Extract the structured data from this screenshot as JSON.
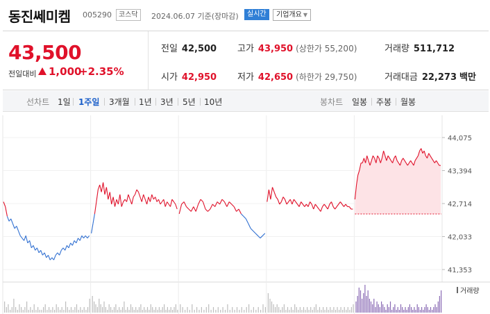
{
  "header": {
    "name": "동진쎄미켐",
    "code": "005290",
    "market": "코스닥",
    "date": "2024.06.07",
    "basis": "기준(장마감)",
    "live_label": "실시간",
    "info_label": "기업개요"
  },
  "quote": {
    "price": "43,500",
    "change_label": "전일대비",
    "change": "1,000",
    "change_pct": "+2.35%",
    "prev_label": "전일",
    "prev": "42,500",
    "open_label": "시가",
    "open": "42,950",
    "high_label": "고가",
    "high": "43,950",
    "upper_limit": "(상한가 55,200)",
    "low_label": "저가",
    "low": "42,650",
    "lower_limit": "(하한가 29,750)",
    "volume_label": "거래량",
    "volume": "511,712",
    "amount_label": "거래대금",
    "amount": "22,273",
    "amount_unit": "백만",
    "accent_up": "#e0112a",
    "accent_down": "#2f6fd1"
  },
  "periods": {
    "line_title": "선차트",
    "line_options": [
      "1일",
      "1주일",
      "3개월",
      "1년",
      "3년",
      "5년",
      "10년"
    ],
    "selected": "1주일",
    "candle_title": "봉차트",
    "candle_options": [
      "일봉",
      "주봉",
      "월봉"
    ]
  },
  "chart_data": {
    "type": "line",
    "title": "",
    "xlabel": "",
    "ylabel": "",
    "ylim": [
      41353,
      44075
    ],
    "y_ticks": [
      44075,
      43394,
      42714,
      42033,
      41353
    ],
    "y_tick_labels": [
      "44,075",
      "43,394",
      "42,714",
      "42,033",
      "41,353"
    ],
    "days": 5,
    "reference_price": 42500,
    "colors": {
      "up": "#e0112a",
      "down": "#2f6fd1",
      "fill": "#fde3e6"
    },
    "volume_legend": "거래량",
    "series": [
      {
        "day": 1,
        "values": [
          42750,
          42650,
          42450,
          42350,
          42400,
          42300,
          42200,
          42250,
          42150,
          42050,
          42000,
          41950,
          42050,
          41900,
          41950,
          41800,
          41850,
          41750,
          41800,
          41700,
          41750,
          41650,
          41700,
          41600,
          41650,
          41550,
          41600,
          41550,
          41650,
          41700,
          41650,
          41750,
          41800,
          41750,
          41850,
          41800,
          41900,
          41850,
          41950,
          41900,
          42000,
          41950,
          42050,
          42000,
          42050,
          42000,
          42050
        ]
      },
      {
        "day": 2,
        "values": [
          42100,
          42300,
          42500,
          42750,
          43000,
          43100,
          42950,
          43150,
          42900,
          43050,
          42800,
          42950,
          42700,
          42850,
          42650,
          42800,
          42700,
          42900,
          42650,
          42750,
          42800,
          42750,
          42900,
          42800,
          42700,
          42850,
          42900,
          43000,
          42950,
          42850,
          42750,
          42900,
          42800,
          42700,
          42850,
          42750,
          42900,
          42800,
          42850,
          42750,
          42800,
          42700,
          42750,
          42800,
          42650,
          42750,
          42700,
          42650,
          42800,
          42750,
          42700,
          42600
        ]
      },
      {
        "day": 3,
        "values": [
          42500,
          42700,
          42750,
          42650,
          42600,
          42550,
          42650,
          42550,
          42700,
          42800,
          42750,
          42600,
          42550,
          42600,
          42700,
          42650,
          42750,
          42700,
          42800,
          42750,
          42650,
          42750,
          42700,
          42650,
          42550,
          42600,
          42500,
          42450,
          42400,
          42300,
          42200,
          42150,
          42100,
          42050,
          42000,
          42050,
          42100
        ]
      },
      {
        "day": 4,
        "values": [
          42750,
          43000,
          42800,
          43050,
          42950,
          42850,
          42800,
          42700,
          42750,
          42850,
          42800,
          42700,
          42750,
          42800,
          42700,
          42800,
          42750,
          42700,
          42650,
          42750,
          42700,
          42650,
          42700,
          42650,
          42750,
          42700,
          42600,
          42700,
          42650,
          42600,
          42550,
          42650,
          42700,
          42650,
          42600,
          42700,
          42750,
          42650,
          42600,
          42650,
          42700,
          42750,
          42700,
          42650,
          42700,
          42650,
          42650,
          42600,
          42600
        ]
      },
      {
        "day": 5,
        "values": [
          42800,
          43100,
          43300,
          43400,
          43550,
          43550,
          43650,
          43550,
          43700,
          43600,
          43500,
          43600,
          43700,
          43650,
          43550,
          43700,
          43650,
          43550,
          43650,
          43800,
          43700,
          43600,
          43700,
          43650,
          43600,
          43550,
          43650,
          43700,
          43600,
          43550,
          43500,
          43600,
          43650,
          43600,
          43550,
          43500,
          43550,
          43600,
          43550,
          43500,
          43600,
          43650,
          43700,
          43800,
          43850,
          43750,
          43800,
          43700,
          43650,
          43750,
          43700,
          43650,
          43600,
          43550,
          43600,
          43550,
          43500,
          43500
        ]
      }
    ],
    "volume": [
      [
        4,
        2,
        3,
        1,
        2,
        5,
        2,
        1,
        3,
        2,
        1,
        2,
        4,
        1,
        2,
        1,
        3,
        1,
        2,
        1,
        1,
        2,
        3,
        1,
        2,
        1,
        2,
        1,
        3,
        2,
        1,
        2,
        1,
        4,
        2,
        1,
        2,
        1,
        2,
        3,
        1,
        2,
        1,
        2,
        1,
        2,
        5
      ],
      [
        6,
        4,
        3,
        2,
        5,
        3,
        2,
        4,
        2,
        1,
        3,
        2,
        1,
        2,
        3,
        1,
        2,
        1,
        2,
        4,
        1,
        2,
        1,
        3,
        2,
        1,
        2,
        1,
        2,
        3,
        1,
        2,
        1,
        2,
        1,
        3,
        2,
        1,
        2,
        1,
        2,
        1,
        2,
        3,
        1,
        2,
        1,
        2,
        1,
        2,
        3,
        1
      ],
      [
        3,
        2,
        1,
        2,
        1,
        3,
        1,
        2,
        1,
        2,
        1,
        2,
        3,
        1,
        2,
        1,
        2,
        1,
        2,
        1,
        3,
        1,
        2,
        1,
        2,
        1,
        2,
        1,
        2,
        3,
        1,
        2,
        1,
        2,
        1,
        3,
        2
      ],
      [
        7,
        5,
        4,
        3,
        2,
        3,
        2,
        1,
        2,
        3,
        1,
        2,
        1,
        2,
        1,
        3,
        2,
        1,
        2,
        1,
        2,
        1,
        2,
        1,
        2,
        1,
        2,
        3,
        1,
        2,
        1,
        2,
        1,
        2,
        1,
        2,
        1,
        2,
        1,
        2,
        1,
        2,
        1,
        2,
        1,
        2,
        1,
        2,
        3
      ],
      [
        4,
        6,
        9,
        8,
        5,
        7,
        10,
        6,
        8,
        5,
        4,
        3,
        5,
        2,
        4,
        3,
        2,
        4,
        3,
        2,
        1,
        3,
        2,
        4,
        1,
        2,
        3,
        1,
        2,
        1,
        3,
        2,
        1,
        2,
        1,
        2,
        3,
        2,
        1,
        2,
        1,
        3,
        2,
        1,
        2,
        1,
        2,
        3,
        2,
        1,
        2,
        1,
        2,
        3,
        2,
        4,
        6,
        8
      ]
    ]
  }
}
